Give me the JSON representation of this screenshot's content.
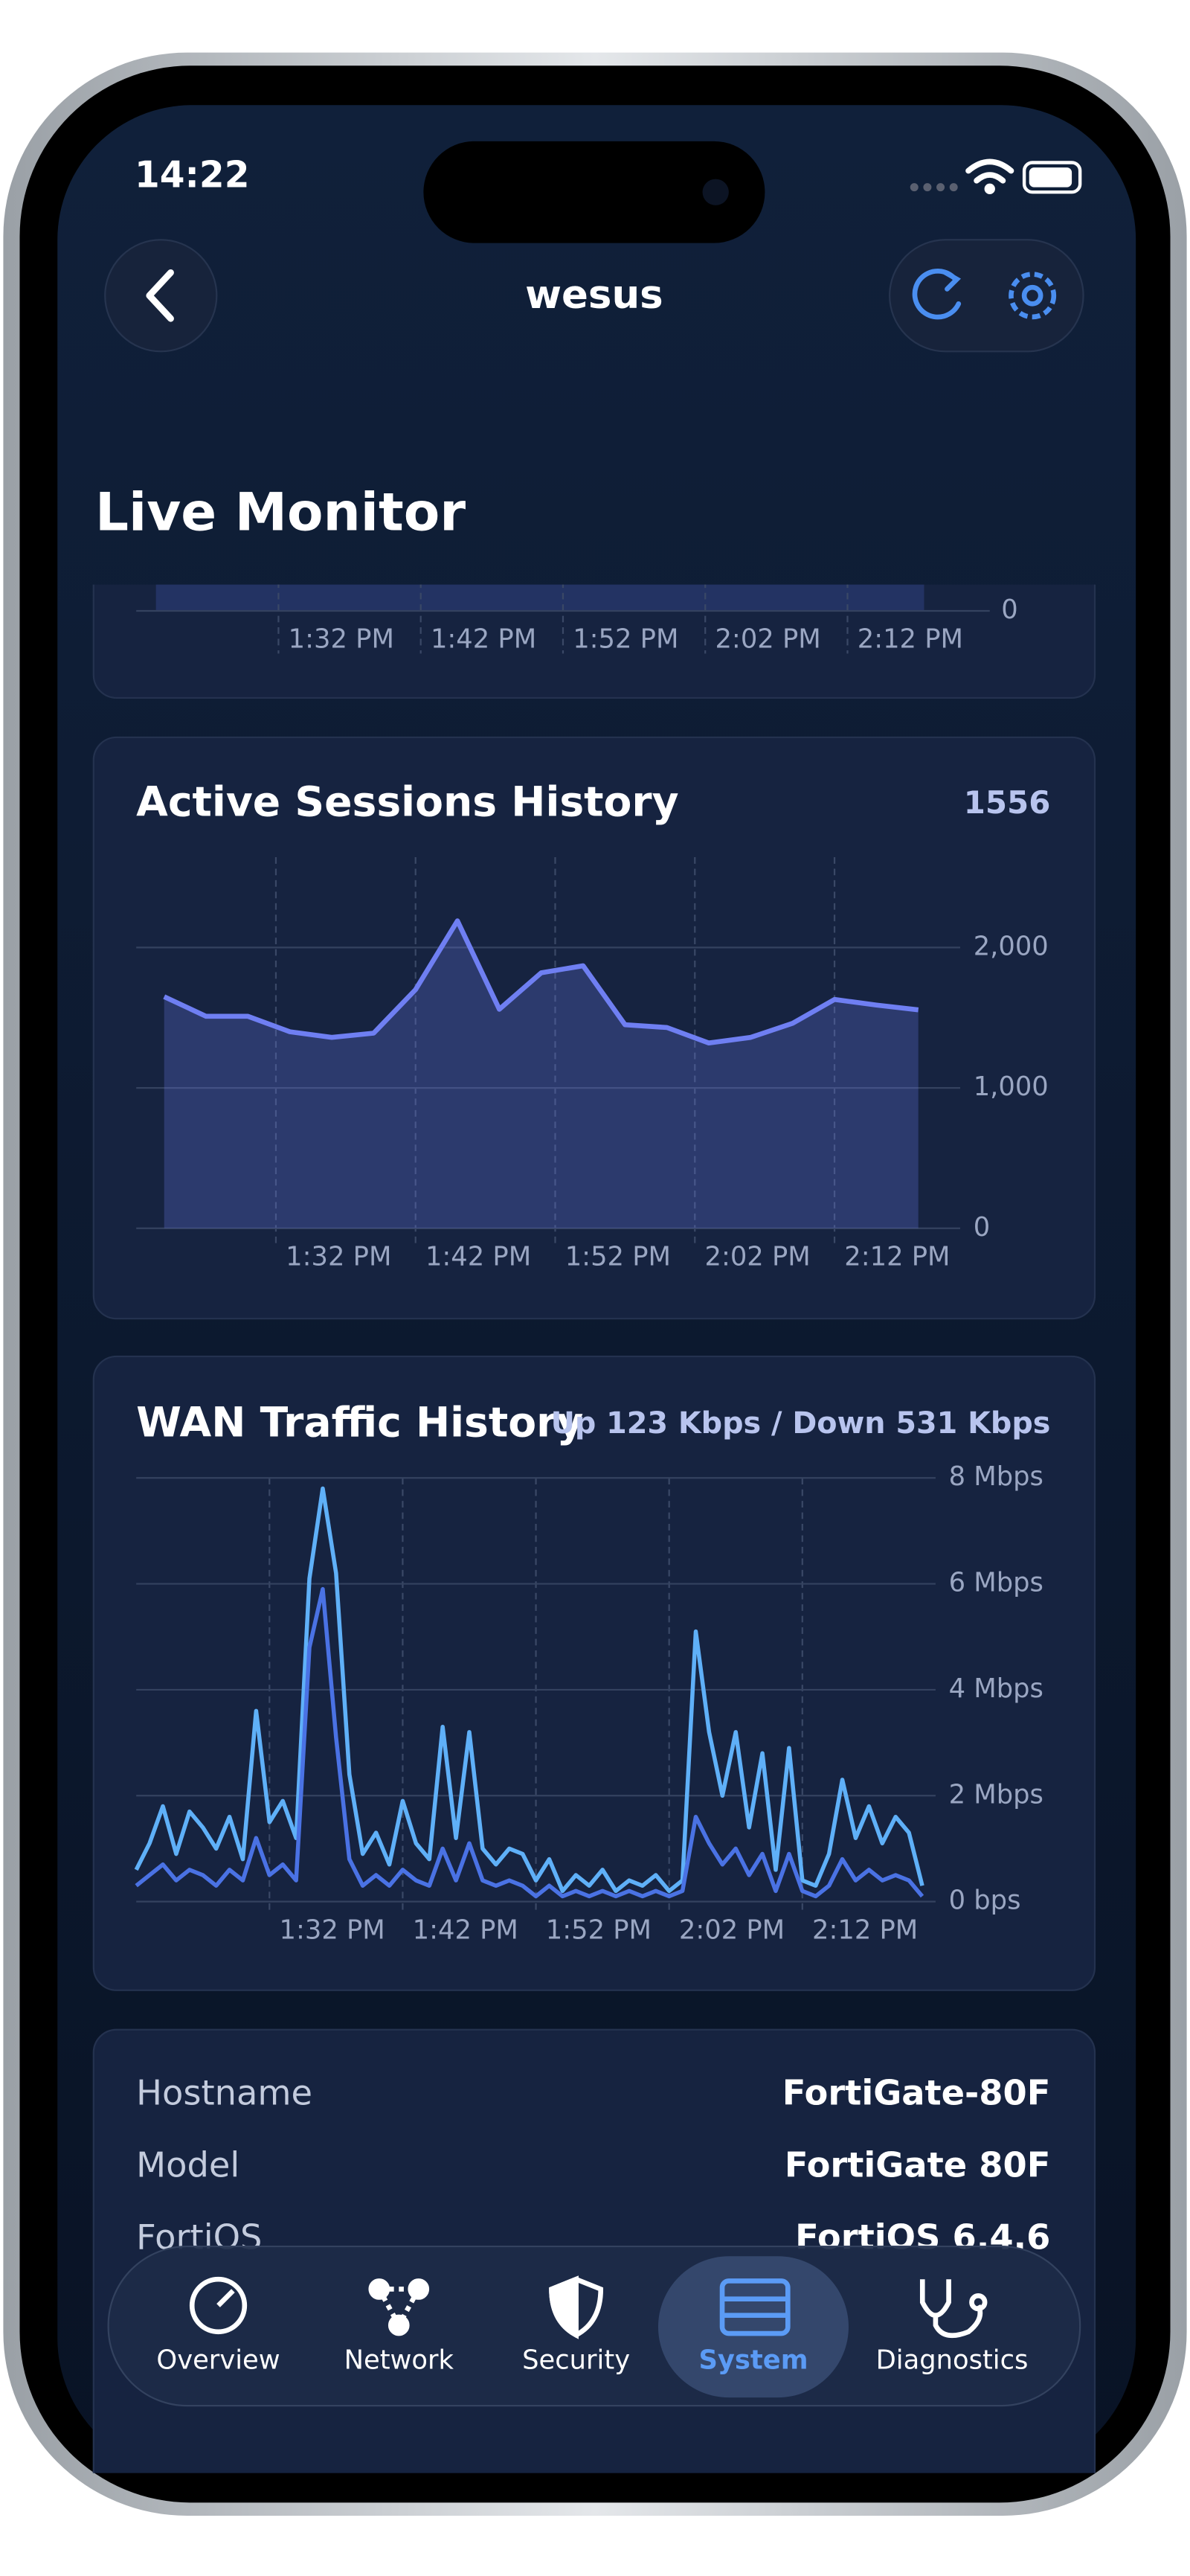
{
  "status_bar": {
    "time": "14:22"
  },
  "nav": {
    "title": "wesus"
  },
  "header": {
    "title": "Live Monitor"
  },
  "chart_data": [
    {
      "type": "area",
      "xlim": [
        802,
        862
      ],
      "xticks": [
        {
          "value": 812,
          "label": "1:32 PM"
        },
        {
          "value": 822,
          "label": "1:42 PM"
        },
        {
          "value": 832,
          "label": "1:52 PM"
        },
        {
          "value": 842,
          "label": "2:02 PM"
        },
        {
          "value": 852,
          "label": "2:12 PM"
        }
      ],
      "yticks": [
        0
      ]
    },
    {
      "type": "area",
      "title": "Active Sessions History",
      "color": "#6f7ff2",
      "x": [
        804,
        807,
        810,
        813,
        816,
        819,
        822,
        825,
        828,
        831,
        834,
        837,
        840,
        843,
        846,
        849,
        852,
        855,
        858
      ],
      "values": [
        1650,
        1510,
        1510,
        1400,
        1360,
        1390,
        1700,
        2190,
        1560,
        1820,
        1870,
        1450,
        1430,
        1320,
        1360,
        1460,
        1630,
        1590,
        1556
      ],
      "xlim": [
        802,
        861
      ],
      "ylim": [
        0,
        2600
      ],
      "xticks": [
        {
          "value": 812,
          "label": "1:32 PM"
        },
        {
          "value": 822,
          "label": "1:42 PM"
        },
        {
          "value": 832,
          "label": "1:52 PM"
        },
        {
          "value": 842,
          "label": "2:02 PM"
        },
        {
          "value": 852,
          "label": "2:12 PM"
        }
      ],
      "yticks": [
        0,
        {
          "value": 1000,
          "label": "1,000"
        },
        {
          "value": 2000,
          "label": "2,000"
        }
      ],
      "grid": true
    },
    {
      "type": "line",
      "title": "WAN Traffic History",
      "subtitle": "Up 123 Kbps / Down 531 Kbps",
      "x": [
        802,
        803,
        804,
        805,
        806,
        807,
        808,
        809,
        810,
        811,
        812,
        813,
        814,
        815,
        816,
        817,
        818,
        819,
        820,
        821,
        822,
        823,
        824,
        825,
        826,
        827,
        828,
        829,
        830,
        831,
        832,
        833,
        834,
        835,
        836,
        837,
        838,
        839,
        840,
        841,
        842,
        843,
        844,
        845,
        846,
        847,
        848,
        849,
        850,
        851,
        852,
        853,
        854,
        855,
        856,
        857,
        858,
        859,
        860,
        861
      ],
      "series": [
        {
          "color": "#5fb0f8",
          "values": [
            0.6,
            1.1,
            1.8,
            0.9,
            1.7,
            1.4,
            1.0,
            1.6,
            0.8,
            3.6,
            1.5,
            1.9,
            1.2,
            6.1,
            7.8,
            6.2,
            2.4,
            0.9,
            1.3,
            0.7,
            1.9,
            1.1,
            0.8,
            3.3,
            1.2,
            3.2,
            1.0,
            0.7,
            1.0,
            0.9,
            0.4,
            0.8,
            0.2,
            0.5,
            0.3,
            0.6,
            0.2,
            0.4,
            0.3,
            0.5,
            0.2,
            0.4,
            5.1,
            3.2,
            2.0,
            3.2,
            1.4,
            2.8,
            0.6,
            2.9,
            0.4,
            0.3,
            0.9,
            2.3,
            1.2,
            1.8,
            1.1,
            1.6,
            1.3,
            0.3
          ]
        },
        {
          "color": "#4a72e4",
          "values": [
            0.3,
            0.5,
            0.7,
            0.4,
            0.6,
            0.5,
            0.3,
            0.6,
            0.4,
            1.2,
            0.5,
            0.7,
            0.4,
            4.8,
            5.9,
            3.1,
            0.8,
            0.3,
            0.5,
            0.3,
            0.6,
            0.4,
            0.3,
            1.0,
            0.4,
            1.1,
            0.4,
            0.3,
            0.4,
            0.3,
            0.1,
            0.3,
            0.1,
            0.2,
            0.1,
            0.2,
            0.1,
            0.2,
            0.1,
            0.2,
            0.1,
            0.2,
            1.6,
            1.1,
            0.7,
            1.0,
            0.5,
            0.9,
            0.2,
            0.9,
            0.2,
            0.1,
            0.3,
            0.8,
            0.4,
            0.6,
            0.4,
            0.5,
            0.4,
            0.1
          ]
        }
      ],
      "xlim": [
        802,
        862
      ],
      "ylim": [
        0,
        8
      ],
      "xticks": [
        {
          "value": 812,
          "label": "1:32 PM"
        },
        {
          "value": 822,
          "label": "1:42 PM"
        },
        {
          "value": 832,
          "label": "1:52 PM"
        },
        {
          "value": 842,
          "label": "2:02 PM"
        },
        {
          "value": 852,
          "label": "2:12 PM"
        }
      ],
      "yticks": [
        {
          "value": 0,
          "label": "0 bps"
        },
        {
          "value": 2,
          "label": "2 Mbps"
        },
        {
          "value": 4,
          "label": "4 Mbps"
        },
        {
          "value": 6,
          "label": "6 Mbps"
        },
        {
          "value": 8,
          "label": "8 Mbps"
        }
      ],
      "grid": true
    }
  ],
  "info": {
    "rows": [
      [
        "Hostname",
        "FortiGate-80F"
      ],
      [
        "Model",
        "FortiGate 80F"
      ],
      [
        "FortiOS",
        "FortiOS 6.4.6"
      ]
    ]
  },
  "tab_bar": {
    "items": [
      "Overview",
      "Network",
      "Security",
      "System",
      "Diagnostics"
    ],
    "active": 3
  }
}
